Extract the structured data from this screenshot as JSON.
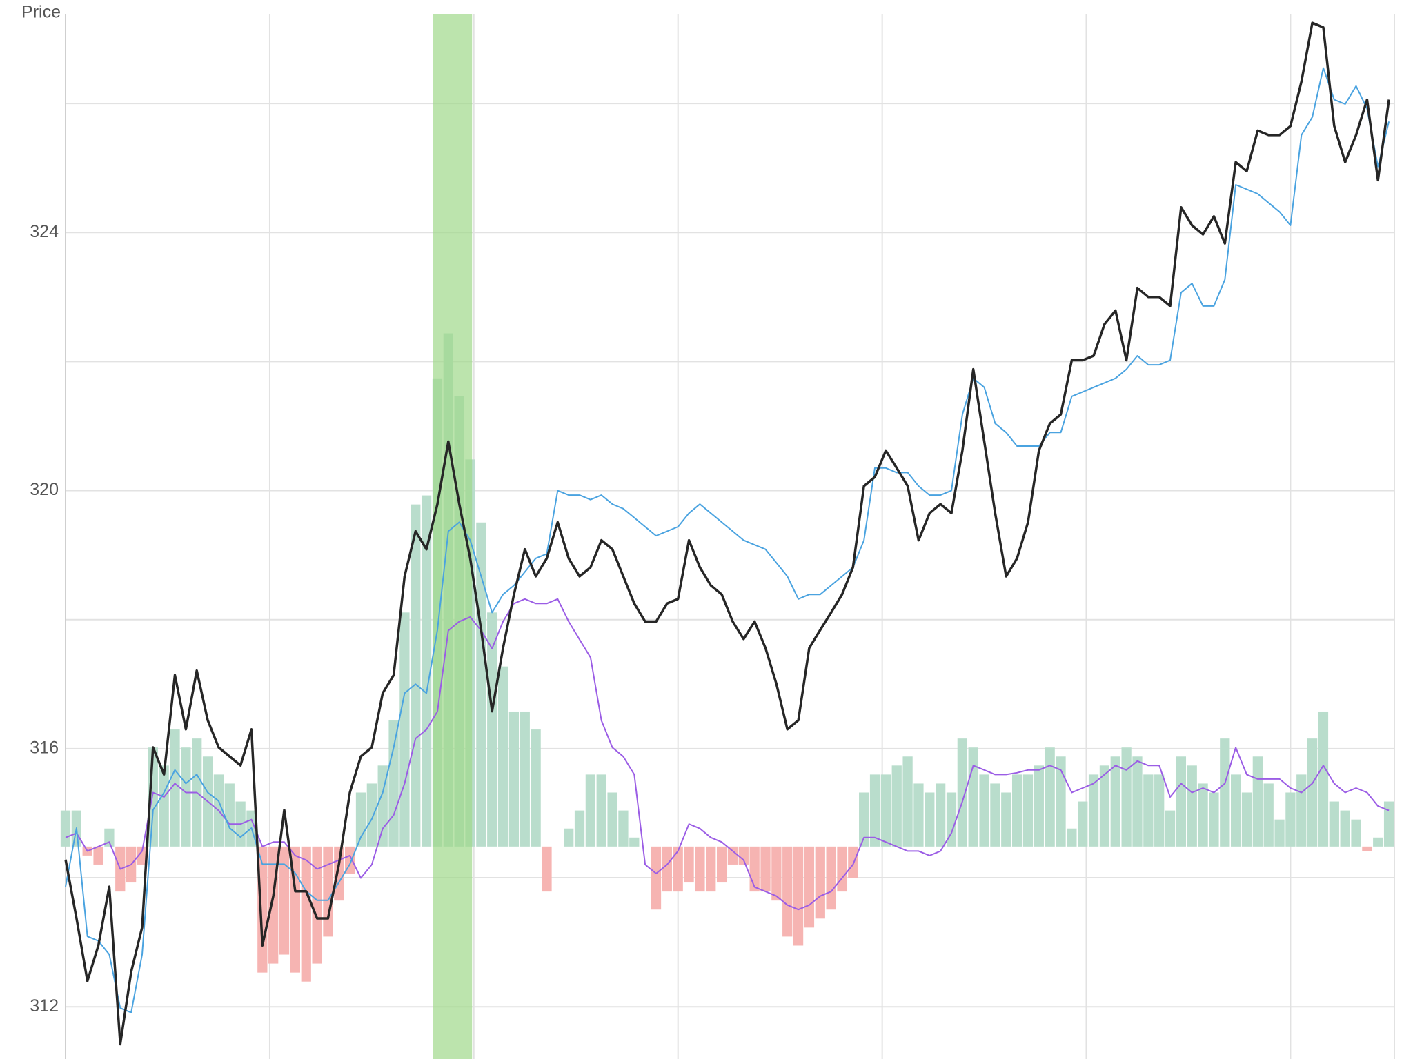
{
  "chart_data": {
    "type": "line",
    "y_label": "Price",
    "xlim": [
      0,
      121.5
    ],
    "ylim": [
      311.19,
      327.39
    ],
    "yticks": [
      312,
      316,
      320,
      324
    ],
    "y_minor_grid": [
      314,
      318,
      322,
      326
    ],
    "x_grid": [
      18.67,
      37.33,
      56,
      74.67,
      93.33,
      112
    ],
    "y2lim": [
      -2.36,
      9.25
    ],
    "grid": true,
    "highlight": {
      "range": [
        33.58,
        37.17
      ],
      "color": "#9fd98a"
    },
    "series": [
      {
        "type": "bar",
        "axis": "y2",
        "positive_color": "#b9ddcc",
        "negative_color": "#f6b4b2",
        "values": [
          0.4,
          0.4,
          -0.1,
          -0.2,
          0.2,
          -0.5,
          -0.4,
          -0.2,
          1.1,
          0.9,
          1.3,
          1.1,
          1.2,
          1.0,
          0.8,
          0.7,
          0.5,
          0.4,
          -1.4,
          -1.3,
          -1.2,
          -1.4,
          -1.5,
          -1.3,
          -1.0,
          -0.6,
          -0.3,
          0.6,
          0.7,
          0.9,
          1.4,
          2.6,
          3.8,
          3.9,
          5.2,
          5.7,
          5.0,
          4.3,
          3.6,
          2.6,
          2.0,
          1.5,
          1.5,
          1.3,
          -0.5,
          0.0,
          0.2,
          0.4,
          0.8,
          0.8,
          0.6,
          0.4,
          0.1,
          0.0,
          -0.7,
          -0.5,
          -0.5,
          -0.4,
          -0.5,
          -0.5,
          -0.4,
          -0.2,
          -0.2,
          -0.5,
          -0.5,
          -0.6,
          -1.0,
          -1.1,
          -0.9,
          -0.8,
          -0.7,
          -0.5,
          -0.35,
          0.6,
          0.8,
          0.8,
          0.9,
          1.0,
          0.7,
          0.6,
          0.7,
          0.6,
          1.2,
          1.1,
          0.8,
          0.7,
          0.6,
          0.8,
          0.8,
          0.9,
          1.1,
          1.0,
          0.2,
          0.5,
          0.8,
          0.9,
          1.0,
          1.1,
          1.0,
          0.8,
          0.8,
          0.4,
          1.0,
          0.9,
          0.7,
          0.6,
          1.2,
          0.8,
          0.6,
          1.0,
          0.7,
          0.3,
          0.6,
          0.8,
          1.2,
          1.5,
          0.5,
          0.4,
          0.3,
          -0.05,
          0.1,
          0.5
        ]
      },
      {
        "type": "line",
        "axis": "y2",
        "color": "#9b5de5",
        "width": 2,
        "values": [
          0.1,
          0.15,
          -0.05,
          0.0,
          0.05,
          -0.25,
          -0.2,
          -0.05,
          0.6,
          0.55,
          0.7,
          0.6,
          0.6,
          0.5,
          0.4,
          0.25,
          0.25,
          0.3,
          0.0,
          0.05,
          0.05,
          -0.1,
          -0.15,
          -0.25,
          -0.2,
          -0.15,
          -0.1,
          -0.35,
          -0.2,
          0.2,
          0.35,
          0.7,
          1.2,
          1.3,
          1.5,
          2.4,
          2.5,
          2.55,
          2.4,
          2.2,
          2.5,
          2.7,
          2.75,
          2.7,
          2.7,
          2.75,
          2.5,
          2.3,
          2.1,
          1.4,
          1.1,
          1.0,
          0.8,
          -0.2,
          -0.3,
          -0.2,
          -0.05,
          0.25,
          0.2,
          0.1,
          0.05,
          -0.05,
          -0.15,
          -0.45,
          -0.5,
          -0.55,
          -0.65,
          -0.7,
          -0.65,
          -0.55,
          -0.5,
          -0.35,
          -0.2,
          0.1,
          0.1,
          0.05,
          0.0,
          -0.05,
          -0.05,
          -0.1,
          -0.05,
          0.15,
          0.5,
          0.9,
          0.85,
          0.8,
          0.8,
          0.82,
          0.85,
          0.85,
          0.9,
          0.85,
          0.6,
          0.65,
          0.7,
          0.8,
          0.9,
          0.85,
          0.95,
          0.9,
          0.9,
          0.55,
          0.7,
          0.6,
          0.65,
          0.6,
          0.7,
          1.1,
          0.8,
          0.75,
          0.75,
          0.75,
          0.65,
          0.6,
          0.7,
          0.9,
          0.7,
          0.6,
          0.65,
          0.6,
          0.45,
          0.4
        ]
      },
      {
        "type": "line",
        "color": "#4aa3e0",
        "width": 2,
        "values": [
          313.86,
          314.77,
          313.09,
          313.02,
          312.81,
          311.98,
          311.91,
          312.81,
          315.05,
          315.32,
          315.67,
          315.46,
          315.6,
          315.32,
          315.19,
          314.77,
          314.63,
          314.77,
          314.21,
          314.21,
          314.21,
          314.07,
          313.79,
          313.65,
          313.65,
          313.93,
          314.21,
          314.63,
          314.91,
          315.32,
          316.02,
          316.86,
          317.0,
          316.86,
          317.84,
          319.37,
          319.51,
          319.23,
          318.67,
          318.11,
          318.39,
          318.53,
          318.74,
          318.95,
          319.02,
          320.0,
          319.93,
          319.93,
          319.86,
          319.93,
          319.79,
          319.72,
          319.58,
          319.44,
          319.3,
          319.37,
          319.44,
          319.65,
          319.79,
          319.65,
          319.51,
          319.37,
          319.23,
          319.16,
          319.09,
          318.88,
          318.67,
          318.32,
          318.39,
          318.39,
          318.53,
          318.67,
          318.81,
          319.23,
          320.35,
          320.35,
          320.28,
          320.28,
          320.07,
          319.93,
          319.93,
          320.0,
          321.18,
          321.74,
          321.6,
          321.04,
          320.9,
          320.69,
          320.69,
          320.69,
          320.9,
          320.9,
          321.46,
          321.53,
          321.6,
          321.67,
          321.74,
          321.88,
          322.09,
          321.95,
          321.95,
          322.02,
          323.07,
          323.21,
          322.86,
          322.86,
          323.27,
          324.74,
          324.67,
          324.6,
          324.46,
          324.32,
          324.11,
          325.51,
          325.79,
          326.55,
          326.06,
          325.99,
          326.27,
          325.92,
          325.02,
          325.72
        ]
      },
      {
        "type": "line",
        "color": "#262626",
        "width": 3.5,
        "values": [
          314.28,
          313.37,
          312.4,
          312.95,
          313.86,
          311.42,
          312.54,
          313.23,
          316.02,
          315.6,
          317.14,
          316.3,
          317.21,
          316.44,
          316.02,
          315.88,
          315.74,
          316.3,
          312.95,
          313.72,
          315.05,
          313.79,
          313.79,
          313.37,
          313.37,
          314.21,
          315.32,
          315.88,
          316.02,
          316.86,
          317.14,
          318.67,
          319.37,
          319.09,
          319.79,
          320.76,
          319.79,
          318.95,
          317.84,
          316.58,
          317.56,
          318.39,
          319.09,
          318.67,
          318.95,
          319.51,
          318.95,
          318.67,
          318.81,
          319.23,
          319.09,
          318.67,
          318.25,
          317.97,
          317.97,
          318.25,
          318.32,
          319.23,
          318.81,
          318.53,
          318.39,
          317.97,
          317.7,
          317.97,
          317.56,
          317.0,
          316.3,
          316.44,
          317.56,
          317.84,
          318.11,
          318.39,
          318.81,
          320.07,
          320.21,
          320.62,
          320.35,
          320.07,
          319.23,
          319.65,
          319.79,
          319.65,
          320.62,
          321.88,
          320.76,
          319.65,
          318.67,
          318.95,
          319.51,
          320.62,
          321.04,
          321.18,
          322.02,
          322.02,
          322.09,
          322.58,
          322.79,
          322.02,
          323.14,
          323.0,
          323.0,
          322.86,
          324.39,
          324.11,
          323.97,
          324.25,
          323.83,
          325.09,
          324.95,
          325.58,
          325.51,
          325.51,
          325.65,
          326.34,
          327.25,
          327.18,
          325.65,
          325.09,
          325.51,
          326.06,
          324.81,
          326.06
        ]
      }
    ]
  }
}
